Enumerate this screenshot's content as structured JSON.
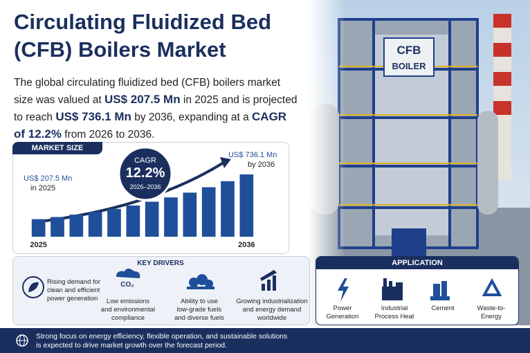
{
  "title_lines": [
    "Circulating Fluidized Bed",
    "(CFB) Boilers Market"
  ],
  "intro": {
    "text1": "The global circulating fluidized bed (CFB) boilers market size was valued at ",
    "highlight1": "US$ 207.5 Mn",
    "text2": " in 2025 and is projected to reach ",
    "highlight2": "US$ 736.1 Mn",
    "text3": " by 2036, expanding at a ",
    "highlight3": "CAGR of 12.2%",
    "text4": " from 2026 to 2036."
  },
  "market_size": {
    "heading": "MARKET SIZE",
    "start_label": [
      "US$ 207.5 Mn",
      "in 2025"
    ],
    "end_label": [
      "US$ 736.1 Mn",
      "by 2036"
    ],
    "cagr": {
      "label": "CAGR",
      "value": "12.2%",
      "period": "2026–2036"
    }
  },
  "chart_data": {
    "type": "bar",
    "categories": [
      "2025",
      null,
      null,
      null,
      null,
      null,
      null,
      null,
      null,
      null,
      null,
      "2036"
    ],
    "values": [
      207.5,
      232.8,
      261.2,
      293.1,
      328.8,
      369.0,
      414.0,
      464.5,
      521.1,
      584.7,
      656.1,
      736.1
    ],
    "color": "#1f4f9a"
  },
  "key_drivers": {
    "heading": "KEY DRIVERS",
    "items": [
      [
        "Rising demand for",
        "clean and efficient",
        "power generation"
      ],
      [
        "Low emissions",
        "and environmental",
        "compliance"
      ],
      [
        "Ability to use",
        "low-grade fuels",
        "and diverse fuels"
      ],
      [
        "Growing industrialization",
        "and energy demand",
        "worldwide"
      ]
    ],
    "icon_text": "CO₂"
  },
  "application": {
    "heading": "APPLICATION",
    "items": [
      [
        "Power",
        "Generation"
      ],
      [
        "Industrial",
        "Process Heat"
      ],
      [
        "Cement"
      ],
      [
        "Waste-to-",
        "Energy"
      ]
    ]
  },
  "footer": [
    "Strong focus on energy efficiency, flexible operation, and sustainable solutions",
    "is expected to drive market growth over the forecast period."
  ],
  "photo": {
    "sign": [
      "CFB",
      "BOILER"
    ]
  }
}
